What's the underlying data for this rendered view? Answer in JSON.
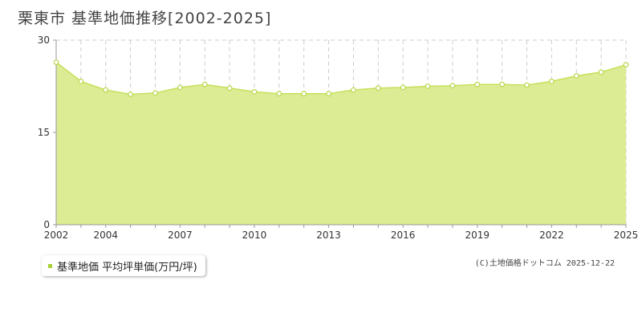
{
  "chart_data": {
    "type": "area",
    "title": "栗東市 基準地価推移[2002-2025]",
    "x": [
      2002,
      2003,
      2004,
      2005,
      2006,
      2007,
      2008,
      2009,
      2010,
      2011,
      2012,
      2013,
      2014,
      2015,
      2016,
      2017,
      2018,
      2019,
      2020,
      2021,
      2022,
      2023,
      2024,
      2025
    ],
    "x_tick_labels": [
      "2002",
      "2004",
      "2007",
      "2010",
      "2013",
      "2016",
      "2019",
      "2022",
      "2025"
    ],
    "y_tick_labels": [
      "30",
      "15",
      "0"
    ],
    "ylim": [
      0,
      30
    ],
    "xlim": [
      2002,
      2025
    ],
    "series": [
      {
        "name": "基準地価 平均坪単価(万円/坪)",
        "values": [
          26.4,
          23.3,
          21.9,
          21.2,
          21.4,
          22.3,
          22.8,
          22.2,
          21.6,
          21.3,
          21.3,
          21.3,
          21.9,
          22.2,
          22.3,
          22.5,
          22.6,
          22.8,
          22.8,
          22.7,
          23.3,
          24.2,
          24.8,
          26.0
        ]
      }
    ],
    "grid": true,
    "legend_position": "bottom-left"
  },
  "credit": "(C)土地価格ドットコム 2025-12-22",
  "colors": {
    "area_fill": "#dcec94",
    "line": "#c6e05a",
    "marker_stroke": "#b8d84a",
    "grid": "#cccccc",
    "axis": "#999999",
    "legend_swatch": "#a8d232"
  }
}
